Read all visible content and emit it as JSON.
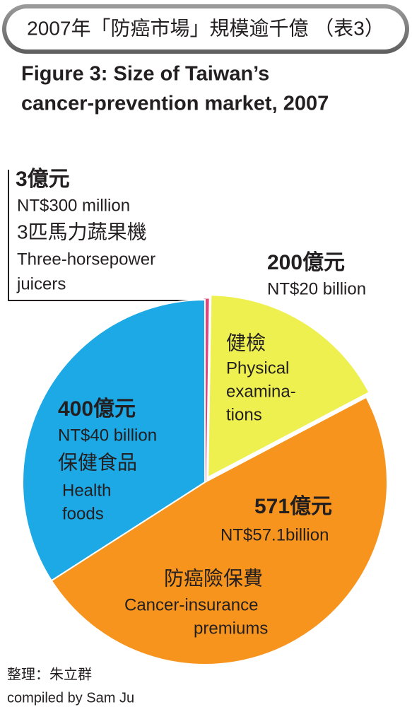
{
  "header": "2007年「防癌市場」規模逾千億 （表3）",
  "chart_data": {
    "type": "pie",
    "title": [
      "Figure 3: Size of Taiwan’s",
      "cancer-prevention market, 2007"
    ],
    "categories": [
      "3匹馬力蔬果機",
      "健檢",
      "防癌險保費",
      "保健食品"
    ],
    "categories_en": [
      [
        "Three-horsepower",
        "juicers"
      ],
      [
        "Physical",
        "examina-",
        "tions"
      ],
      [
        "Cancer-insurance",
        "premiums"
      ],
      [
        "Health",
        "foods"
      ]
    ],
    "values": [
      3,
      200,
      571,
      400
    ],
    "value_labels": [
      "3億元",
      "200億元",
      "571億元",
      "400億元"
    ],
    "value_labels_en": [
      "NT$300 million",
      "NT$20 billion",
      "NT$57.1billion",
      "NT$40 billion"
    ],
    "colors": [
      "#e0457b",
      "#eef050",
      "#f7941d",
      "#1ca9e6"
    ]
  },
  "credit": [
    "整理：朱立群",
    "compiled by Sam Ju"
  ]
}
